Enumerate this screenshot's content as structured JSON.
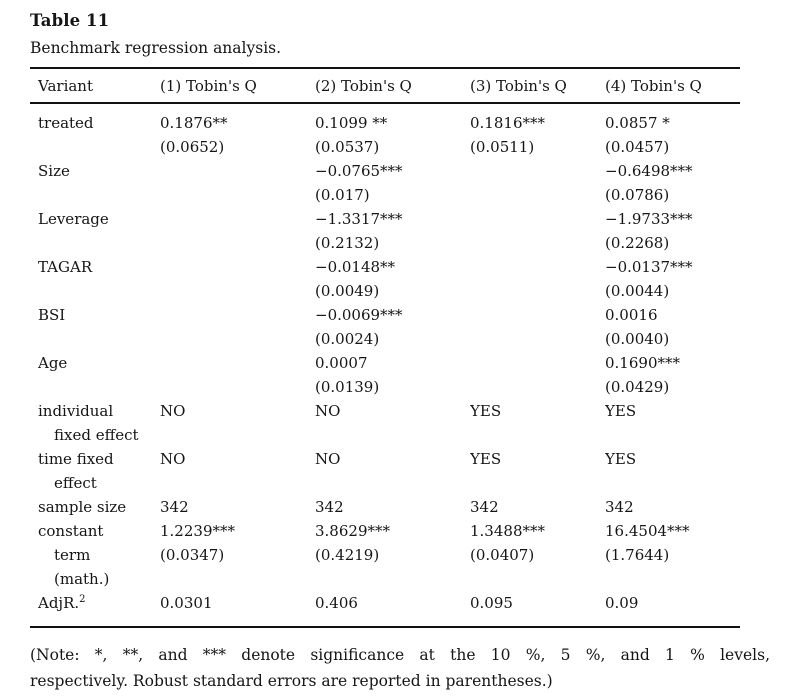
{
  "page": {
    "title": "Table 11",
    "subtitle": "Benchmark regression analysis.",
    "note_line1": "(Note: *, **, and *** denote significance at the 10 %, 5 %, and 1 % levels,",
    "note_line2": "respectively. Robust standard errors are reported in parentheses.)"
  },
  "table": {
    "columns": [
      "Variant",
      "(1) Tobin's Q",
      "(2) Tobin's Q",
      "(3) Tobin's Q",
      "(4) Tobin's Q"
    ],
    "lines": [
      {
        "label": "treated",
        "indent": false,
        "cells": [
          "0.1876**",
          "0.1099 **",
          "0.1816***",
          "0.0857 *"
        ]
      },
      {
        "label": "",
        "indent": false,
        "cells": [
          "(0.0652)",
          "(0.0537)",
          "(0.0511)",
          "(0.0457)"
        ]
      },
      {
        "label": "Size",
        "indent": false,
        "cells": [
          "",
          "−0.0765***",
          "",
          "−0.6498***"
        ]
      },
      {
        "label": "",
        "indent": false,
        "cells": [
          "",
          "(0.017)",
          "",
          "(0.0786)"
        ]
      },
      {
        "label": "Leverage",
        "indent": false,
        "cells": [
          "",
          "−1.3317***",
          "",
          "−1.9733***"
        ]
      },
      {
        "label": "",
        "indent": false,
        "cells": [
          "",
          "(0.2132)",
          "",
          "(0.2268)"
        ]
      },
      {
        "label": "TAGAR",
        "indent": false,
        "cells": [
          "",
          "−0.0148**",
          "",
          "−0.0137***"
        ]
      },
      {
        "label": "",
        "indent": false,
        "cells": [
          "",
          "(0.0049)",
          "",
          "(0.0044)"
        ]
      },
      {
        "label": "BSI",
        "indent": false,
        "cells": [
          "",
          "−0.0069***",
          "",
          "0.0016"
        ]
      },
      {
        "label": "",
        "indent": false,
        "cells": [
          "",
          "(0.0024)",
          "",
          "(0.0040)"
        ]
      },
      {
        "label": "Age",
        "indent": false,
        "cells": [
          "",
          "0.0007",
          "",
          "0.1690***"
        ]
      },
      {
        "label": "",
        "indent": false,
        "cells": [
          "",
          "(0.0139)",
          "",
          "(0.0429)"
        ]
      },
      {
        "label": "individual",
        "indent": false,
        "cells": [
          "NO",
          "NO",
          "YES",
          "YES"
        ]
      },
      {
        "label": "fixed effect",
        "indent": true,
        "cells": [
          "",
          "",
          "",
          ""
        ]
      },
      {
        "label": "time fixed",
        "indent": false,
        "cells": [
          "NO",
          "NO",
          "YES",
          "YES"
        ]
      },
      {
        "label": "effect",
        "indent": true,
        "cells": [
          "",
          "",
          "",
          ""
        ]
      },
      {
        "label": "sample size",
        "indent": false,
        "cells": [
          "342",
          "342",
          "342",
          "342"
        ]
      },
      {
        "label": "constant",
        "indent": false,
        "cells": [
          "1.2239***",
          "3.8629***",
          "1.3488***",
          "16.4504***"
        ]
      },
      {
        "label": "term",
        "indent": true,
        "cells": [
          "(0.0347)",
          "(0.4219)",
          "(0.0407)",
          "(1.7644)"
        ]
      },
      {
        "label": "(math.)",
        "indent": true,
        "cells": [
          "",
          "",
          "",
          ""
        ]
      },
      {
        "label": "AdjR.",
        "label_sup": "2",
        "indent": false,
        "cells": [
          "0.0301",
          "0.406",
          "0.095",
          "0.09"
        ]
      }
    ]
  }
}
